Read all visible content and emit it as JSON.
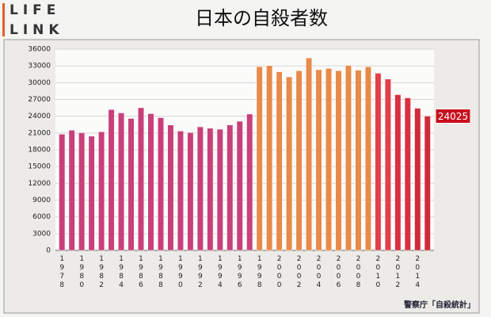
{
  "logo": [
    "LIFE",
    "LINK"
  ],
  "chart_data": {
    "type": "bar",
    "title": "日本の自殺者数",
    "source": "警察庁「自殺統計」",
    "categories": [
      "1978",
      null,
      "1980",
      null,
      "1982",
      null,
      "1984",
      null,
      "1986",
      null,
      "1988",
      null,
      "1990",
      null,
      "1992",
      null,
      "1994",
      null,
      "1996",
      null,
      "1998",
      null,
      "2000",
      null,
      "2002",
      null,
      "2004",
      null,
      "2006",
      null,
      "2008",
      null,
      "2010",
      null,
      "2012",
      null,
      "2014",
      null
    ],
    "values": [
      20788,
      21503,
      21048,
      20434,
      21228,
      25202,
      24596,
      23599,
      25524,
      24460,
      23742,
      22436,
      21346,
      21084,
      22104,
      21851,
      21679,
      22445,
      23104,
      24391,
      32863,
      33048,
      31957,
      31042,
      32143,
      34427,
      32325,
      32552,
      32155,
      33093,
      32249,
      32845,
      31690,
      30651,
      27858,
      27283,
      25427,
      24025
    ],
    "colors": [
      "#c8407a",
      "#c8407a",
      "#c8407a",
      "#c8407a",
      "#c8407a",
      "#c8407a",
      "#c8407a",
      "#c8407a",
      "#c8407a",
      "#c8407a",
      "#c8407a",
      "#c8407a",
      "#c8407a",
      "#c8407a",
      "#c8407a",
      "#c8407a",
      "#c8407a",
      "#c8407a",
      "#c8407a",
      "#c8407a",
      "#e88a4a",
      "#e88a4a",
      "#e88a4a",
      "#e88a4a",
      "#e88a4a",
      "#e88a4a",
      "#e88a4a",
      "#e88a4a",
      "#e88a4a",
      "#e88a4a",
      "#e88a4a",
      "#e88a4a",
      "#e0404a",
      "#e0404a",
      "#d83040",
      "#d83040",
      "#d02a3a",
      "#d02a3a"
    ],
    "ylim": [
      0,
      36000
    ],
    "yticks": [
      0,
      3000,
      6000,
      9000,
      12000,
      15000,
      18000,
      21000,
      24000,
      27000,
      30000,
      33000,
      36000
    ],
    "grid": true
  }
}
